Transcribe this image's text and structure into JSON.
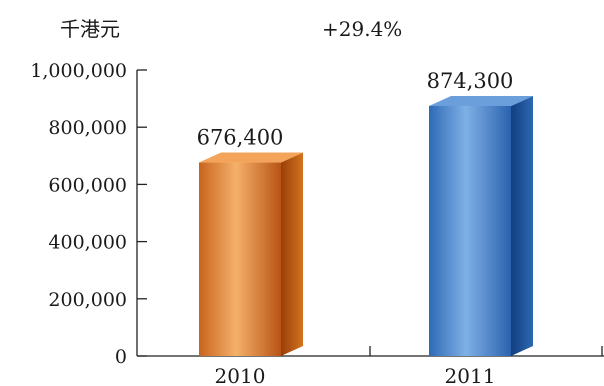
{
  "chart_data": {
    "type": "bar",
    "unit_label": "千港元",
    "annotation": "+29.4%",
    "categories": [
      "2010",
      "2011"
    ],
    "values": [
      676400,
      874300
    ],
    "value_labels": [
      "676,400",
      "874,300"
    ],
    "ylim": [
      0,
      1000000
    ],
    "y_ticks": [
      0,
      200000,
      400000,
      600000,
      800000,
      1000000
    ],
    "y_tick_labels": [
      "0",
      "200,000",
      "400,000",
      "600,000",
      "800,000",
      "1,000,000"
    ],
    "grid": false,
    "colors": {
      "2010": [
        "#a24a10",
        "#f4a45a",
        "#c45e18"
      ],
      "2011": [
        "#1e5aa8",
        "#6a9fdc",
        "#164c94"
      ]
    }
  }
}
